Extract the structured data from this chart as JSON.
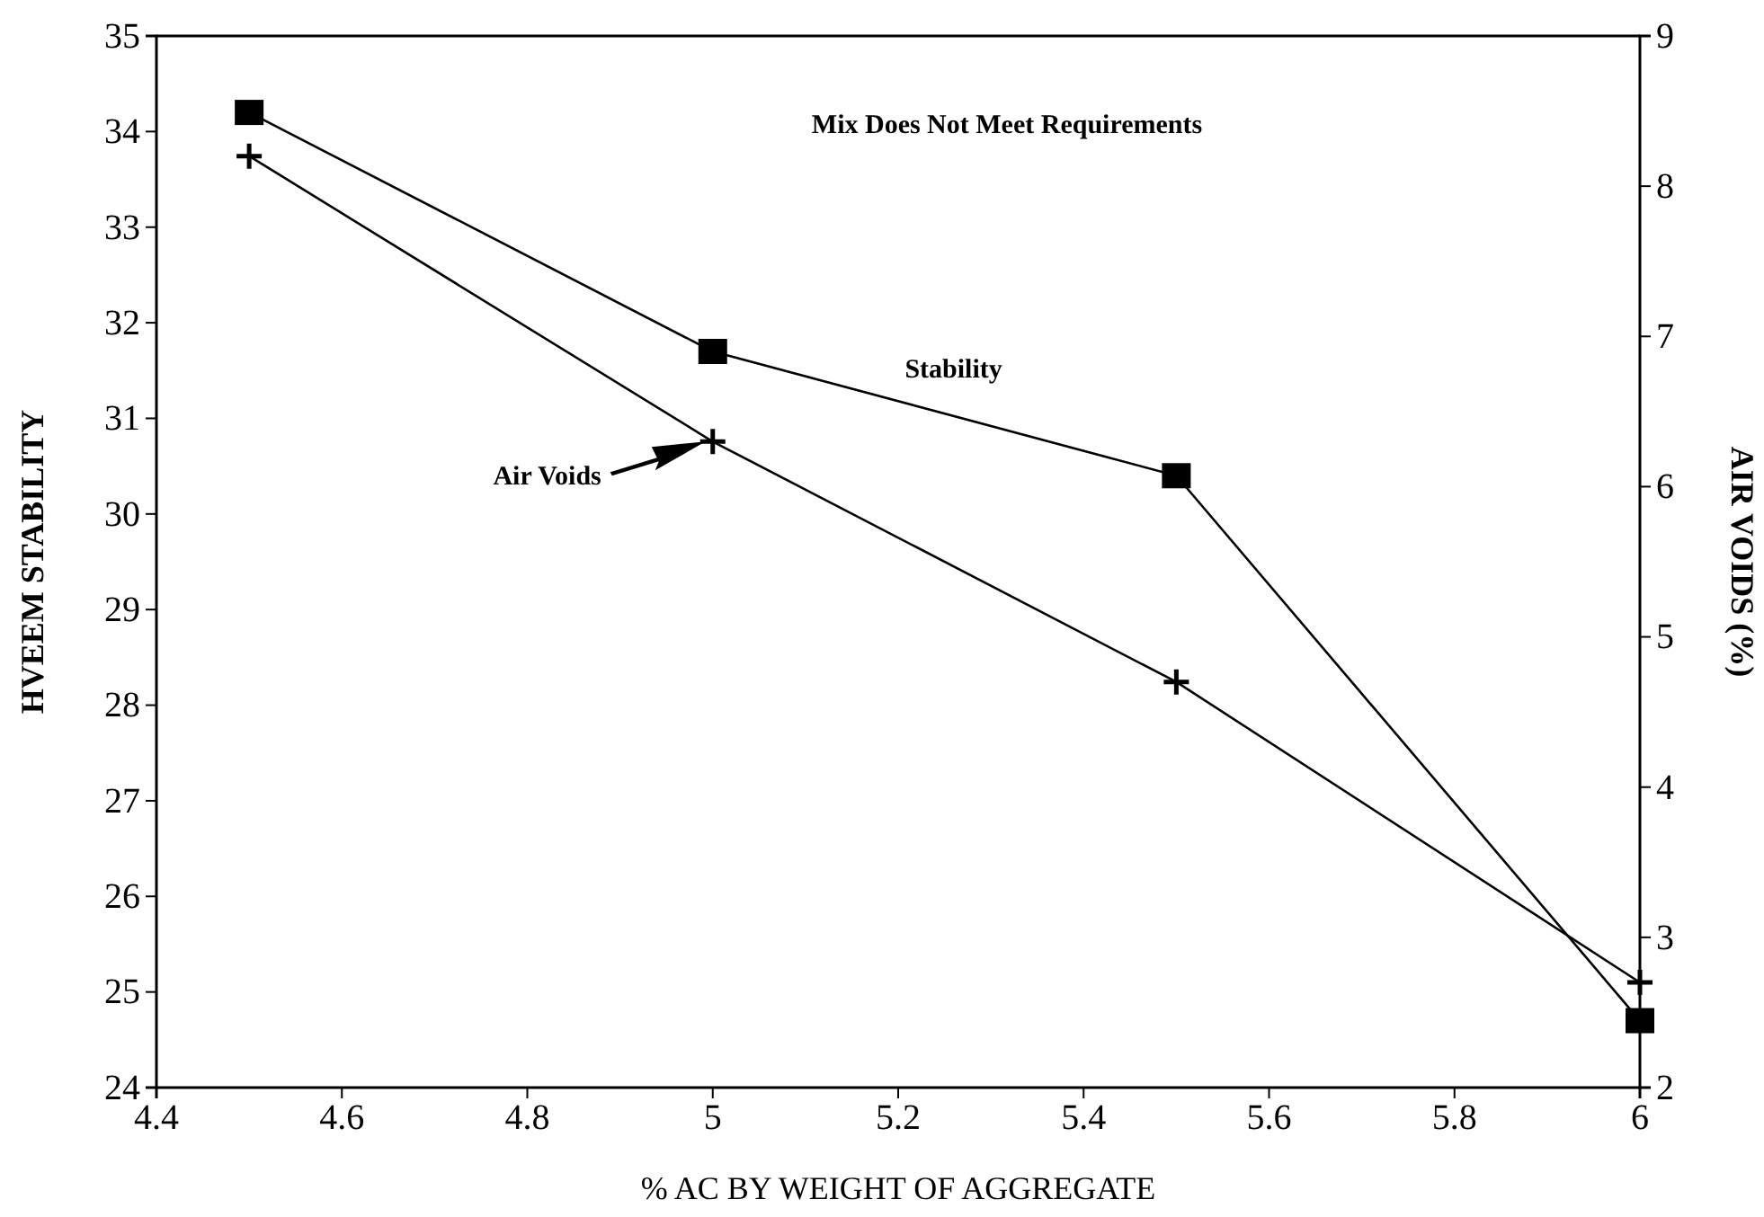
{
  "chart_data": {
    "type": "line",
    "xlabel": "% AC BY WEIGHT OF AGGREGATE",
    "ylabel": "HVEEM STABILITY",
    "y2label": "AIR VOIDS (%)",
    "annotations": [
      "Mix Does Not Meet Requirements"
    ],
    "x": [
      4.5,
      5,
      5.5,
      6
    ],
    "series": [
      {
        "name": "Stability",
        "color": "#000000",
        "values": [
          34.2,
          31.7,
          30.4,
          24.7
        ],
        "marker": "square"
      },
      {
        "name": "Air Voids",
        "color": "#000000",
        "values": [
          8.2,
          6.3,
          4.7,
          2.7
        ],
        "marker": "cross",
        "axis": "y2"
      }
    ],
    "xlim": [
      4.4,
      6
    ],
    "xticks": [
      4.4,
      4.6,
      4.8,
      5,
      5.2,
      5.4,
      5.6,
      5.8,
      6
    ],
    "ylim": [
      24,
      35
    ],
    "yticks": [
      24,
      25,
      26,
      27,
      28,
      29,
      30,
      31,
      32,
      33,
      34,
      35
    ],
    "y2lim": [
      2,
      9
    ],
    "y2ticks": [
      2,
      3,
      4,
      5,
      6,
      7,
      8,
      9
    ],
    "grid": false,
    "line_style": "solid"
  }
}
